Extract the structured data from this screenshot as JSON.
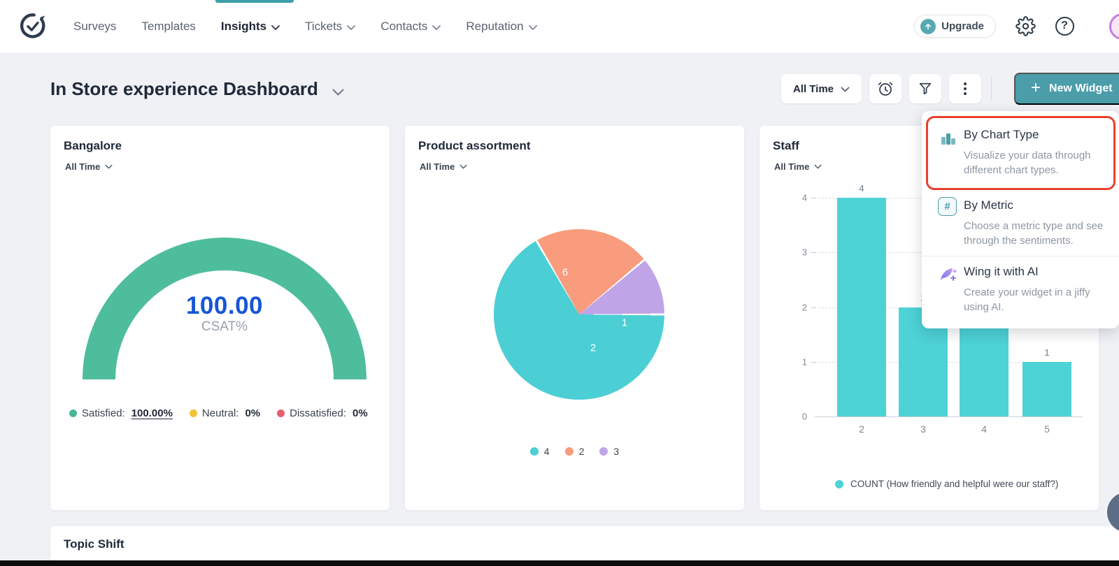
{
  "colors": {
    "accent_teal": "#4a9da9",
    "nav_indicator_teal": "#3d9ea8",
    "chart_teal": "#4dd2d6",
    "pie": [
      "#4bcfd4",
      "#f99b7d",
      "#bfa5e8"
    ],
    "gauge_green": "#4ebd9b",
    "value_blue": "#1655d8",
    "satisfied_green": "#44b795",
    "neutral_yellow": "#f1c43b",
    "dissatisfied_red": "#e55e6e",
    "highlight_red": "#e8402c",
    "background": "#eff1f5"
  },
  "nav": {
    "items": [
      {
        "label": "Surveys"
      },
      {
        "label": "Templates"
      },
      {
        "label": "Insights",
        "active": true
      },
      {
        "label": "Tickets"
      },
      {
        "label": "Contacts"
      },
      {
        "label": "Reputation"
      }
    ],
    "upgrade_label": "Upgrade"
  },
  "header": {
    "title": "In Store experience Dashboard",
    "time_filter": "All Time",
    "new_widget_plus": "+",
    "new_widget_label": "New Widget"
  },
  "menu": {
    "items": [
      {
        "title": "By Chart Type",
        "description": "Visualize your data through different chart types.",
        "highlighted": true
      },
      {
        "title": "By Metric",
        "icon_glyph": "#",
        "description": "Choose a metric type and see through the sentiments."
      },
      {
        "title": "Wing it with AI",
        "description": "Create your widget in a jiffy using AI."
      }
    ]
  },
  "cards": {
    "bangalore": {
      "title": "Bangalore",
      "time_filter": "All Time",
      "value": "100.00",
      "metric": "CSAT%",
      "legend": [
        {
          "label": "Satisfied:",
          "value": "100.00%"
        },
        {
          "label": "Neutral:",
          "value": "0%"
        },
        {
          "label": "Dissatisfied:",
          "value": "0%"
        }
      ]
    },
    "product_assortment": {
      "title": "Product assortment",
      "time_filter": "All Time",
      "slices": [
        {
          "label": "6"
        },
        {
          "label": "2"
        },
        {
          "label": "1"
        }
      ],
      "legend": [
        {
          "label": "4"
        },
        {
          "label": "2"
        },
        {
          "label": "3"
        }
      ]
    },
    "staff": {
      "title": "Staff",
      "time_filter": "All Time",
      "legend": "COUNT (How friendly and helpful were our staff?)"
    },
    "topic_shift": {
      "title": "Topic Shift"
    }
  },
  "chart_data": [
    {
      "type": "gauge",
      "title": "Bangalore",
      "metric": "CSAT%",
      "value": 100.0,
      "range": [
        0,
        100
      ],
      "segments": [
        {
          "name": "Satisfied",
          "value": 100.0
        },
        {
          "name": "Neutral",
          "value": 0
        },
        {
          "name": "Dissatisfied",
          "value": 0
        }
      ]
    },
    {
      "type": "pie",
      "title": "Product assortment",
      "labels": [
        "4",
        "2",
        "3"
      ],
      "values": [
        6,
        2,
        1
      ],
      "start_angle_deg": 90,
      "direction": "clockwise",
      "legend_position": "bottom"
    },
    {
      "type": "bar",
      "title": "Staff",
      "series": [
        {
          "name": "COUNT (How friendly and helpful were our staff?)",
          "values": [
            4,
            2,
            2,
            1
          ]
        }
      ],
      "categories": [
        "2",
        "3",
        "4",
        "5"
      ],
      "yticks": [
        4,
        3,
        2,
        1,
        0
      ],
      "ylim": [
        0,
        4
      ],
      "grid": "dashed",
      "legend_position": "bottom"
    }
  ]
}
